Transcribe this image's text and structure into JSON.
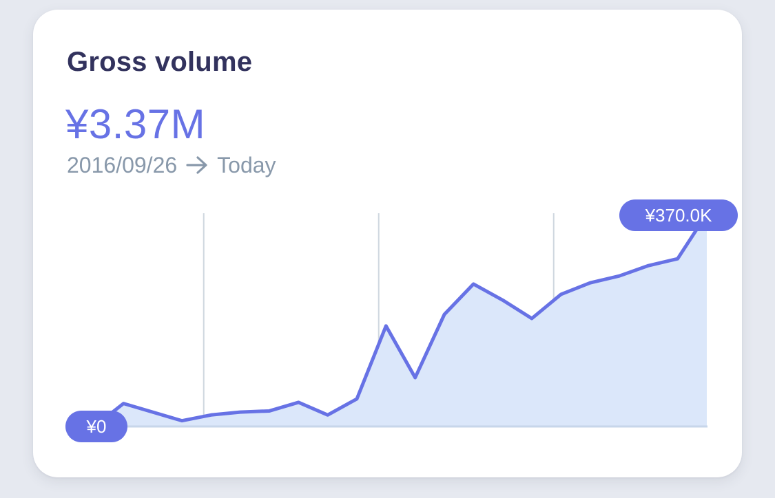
{
  "card": {
    "title": "Gross volume",
    "total": "¥3.37M",
    "date_start": "2016/09/26",
    "date_end": "Today",
    "arrow_icon": "arrow-right-icon"
  },
  "colors": {
    "accent": "#6772e5",
    "area_fill": "#dbe7fa",
    "gridline": "#cfd7df",
    "baseline": "#c7d6ea",
    "title": "#32325d",
    "muted": "#8898aa"
  },
  "chart_data": {
    "type": "area",
    "x": [
      0,
      1,
      2,
      3,
      4,
      5,
      6,
      7,
      8,
      9,
      10,
      11,
      12,
      13,
      14,
      15,
      16,
      17,
      18,
      19,
      20,
      21
    ],
    "values": [
      0,
      40,
      25,
      10,
      20,
      25,
      27,
      42,
      20,
      48,
      175,
      85,
      195,
      248,
      220,
      188,
      230,
      250,
      262,
      280,
      292,
      370
    ],
    "ylim": [
      0,
      370
    ],
    "vertical_gridlines_at": [
      3.75,
      9.75,
      15.75
    ],
    "start_label": "¥0",
    "end_label": "¥370.0K",
    "grid": "vertical",
    "title": "",
    "xlabel": "",
    "ylabel": ""
  }
}
